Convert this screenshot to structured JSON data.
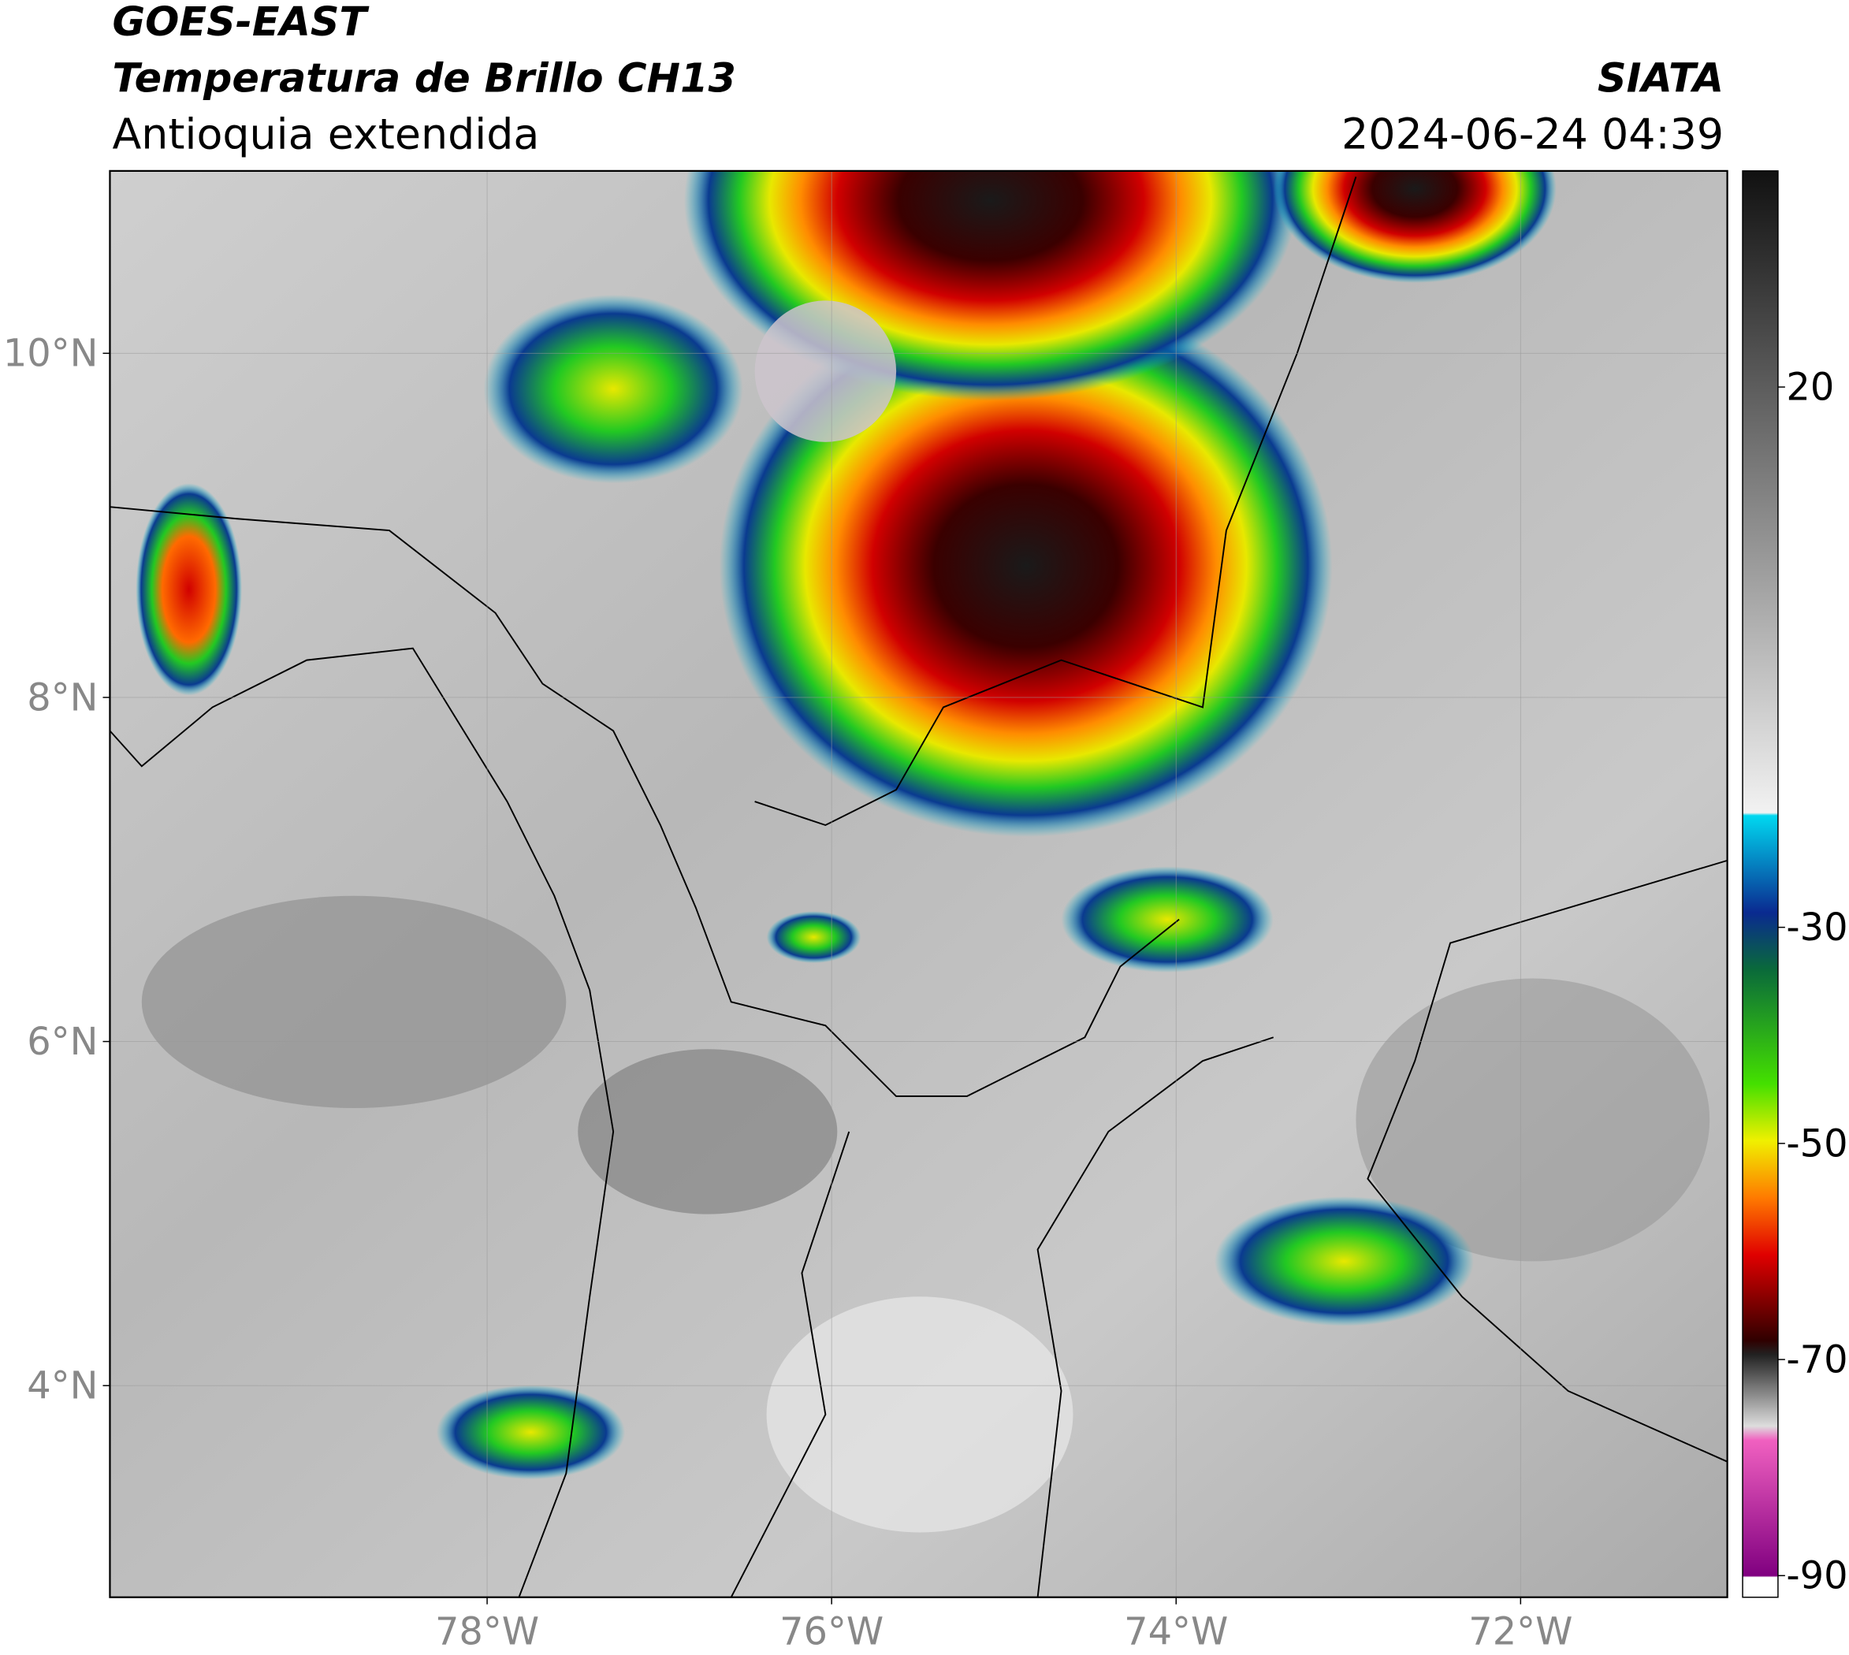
{
  "header": {
    "title": "GOES-EAST",
    "subtitle": "Temperatura de Brillo CH13",
    "region": "Antioquia extendida",
    "source": "SIATA",
    "timestamp": "2024-06-24 04:39"
  },
  "map": {
    "xlim": [
      -80.19,
      -70.8
    ],
    "ylim": [
      2.77,
      11.06
    ],
    "xticks": [
      {
        "value": -78,
        "label": "78°W"
      },
      {
        "value": -76,
        "label": "76°W"
      },
      {
        "value": -74,
        "label": "74°W"
      },
      {
        "value": -72,
        "label": "72°W"
      }
    ],
    "yticks": [
      {
        "value": 4,
        "label": "4°N"
      },
      {
        "value": 6,
        "label": "6°N"
      },
      {
        "value": 8,
        "label": "8°N"
      },
      {
        "value": 10,
        "label": "10°N"
      }
    ],
    "grid": true
  },
  "colorbar": {
    "range": [
      -92,
      40
    ],
    "ticks": [
      20,
      -30,
      -50,
      -70,
      -90
    ]
  }
}
